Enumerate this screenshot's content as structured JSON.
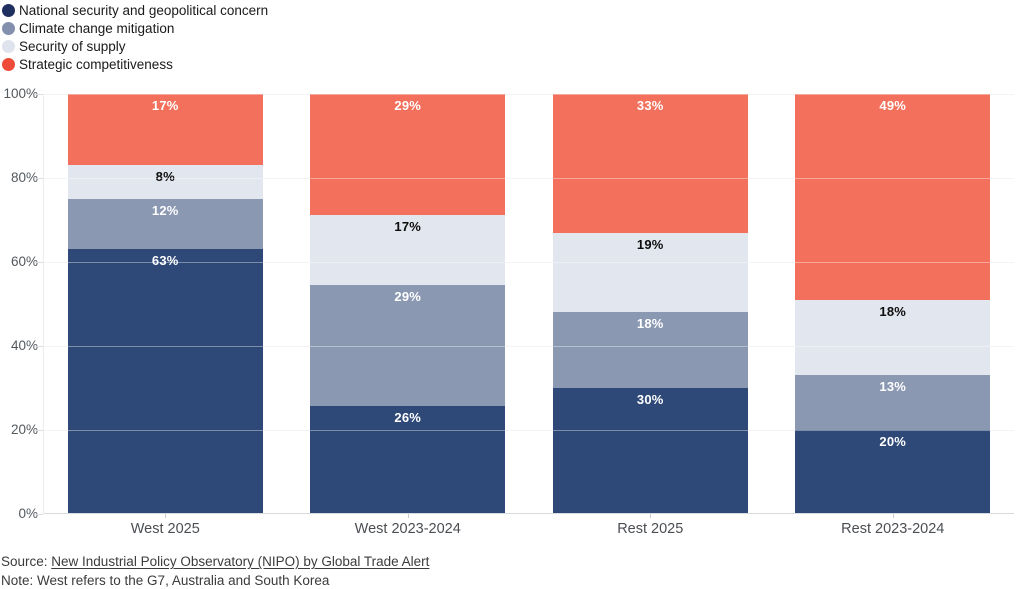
{
  "legend": {
    "items": [
      {
        "label": "National security and geopolitical concern",
        "dot_color": "#1f3060"
      },
      {
        "label": "Climate change mitigation",
        "dot_color": "#8390ad"
      },
      {
        "label": "Security of supply",
        "dot_color": "#dfe3ed"
      },
      {
        "label": "Strategic competitiveness",
        "dot_color": "#ee4c38"
      }
    ]
  },
  "chart_data": {
    "type": "bar",
    "stacked": true,
    "percent": true,
    "unit": "%",
    "categories": [
      "West 2025",
      "West 2023-2024",
      "Rest 2025",
      "Rest 2023-2024"
    ],
    "series": [
      {
        "name": "National security and geopolitical concern",
        "color": "#2e4978",
        "label_color": "#ffffff",
        "values": [
          63,
          26,
          30,
          20
        ]
      },
      {
        "name": "Climate change mitigation",
        "color": "#8a98b2",
        "label_color": "#ffffff",
        "values": [
          12,
          29,
          18,
          13
        ]
      },
      {
        "name": "Security of supply",
        "color": "#e2e6ee",
        "label_color": "#0d0d0d",
        "values": [
          8,
          17,
          19,
          18
        ]
      },
      {
        "name": "Strategic competitiveness",
        "color": "#f2705c",
        "label_color": "#ffffff",
        "values": [
          17,
          29,
          33,
          49
        ]
      }
    ],
    "y_ticks": [
      "100%",
      "80%",
      "60%",
      "40%",
      "20%",
      "0%"
    ],
    "ylim": [
      0,
      100
    ],
    "grid": true,
    "legend_position": "top-left"
  },
  "footer": {
    "source_prefix": "Source: ",
    "source_link": "New Industrial Policy Observatory (NIPO) by Global Trade Alert",
    "note": "Note: West refers to the G7, Australia and South Korea"
  }
}
